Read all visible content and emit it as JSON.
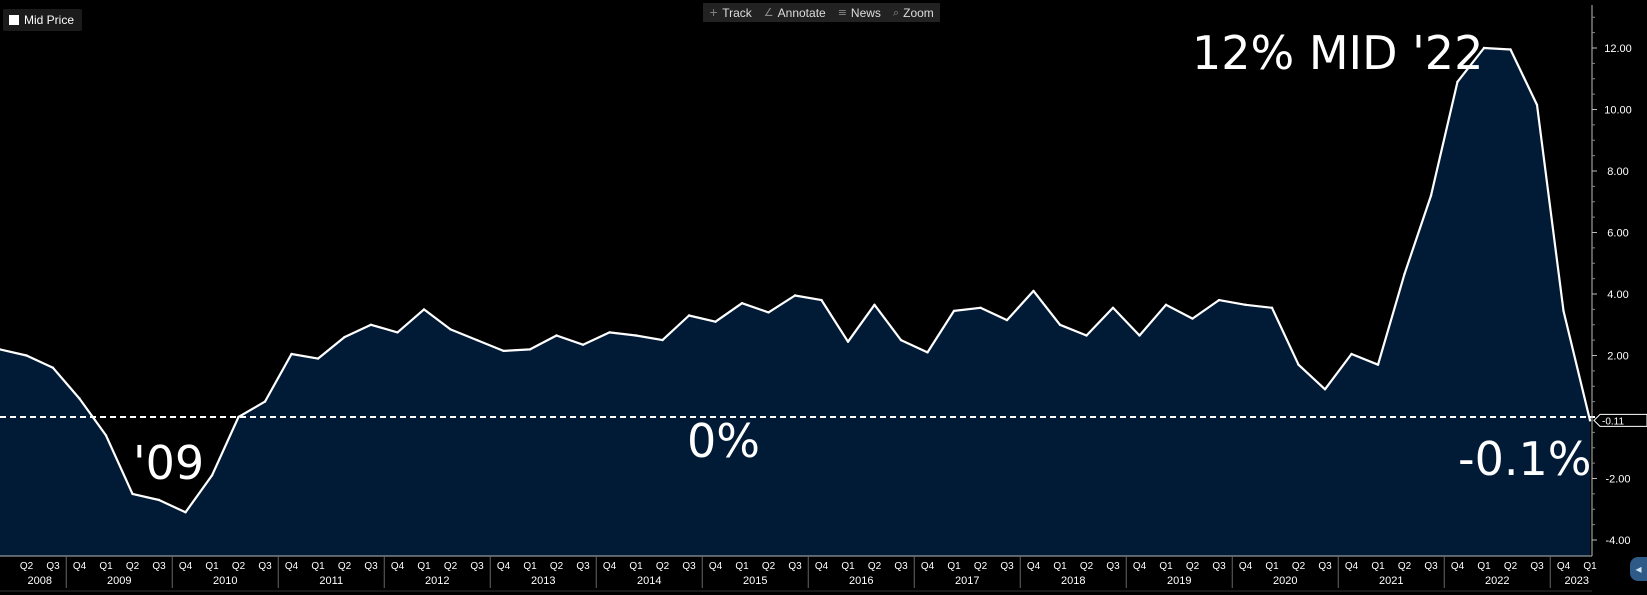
{
  "legend": {
    "label": "Mid Price",
    "swatch_color": "#ffffff"
  },
  "toolbar": {
    "items": [
      {
        "label": "Track",
        "icon": "crosshair-icon",
        "glyph": "+"
      },
      {
        "label": "Annotate",
        "icon": "pencil-icon",
        "glyph": "∠"
      },
      {
        "label": "News",
        "icon": "news-icon",
        "glyph": "≡"
      },
      {
        "label": "Zoom",
        "icon": "magnifier-icon",
        "glyph": "⌕"
      }
    ]
  },
  "annotations": {
    "peak": "12% MID '22",
    "trough": "'09",
    "zero": "0%",
    "latest": "-0.1%"
  },
  "current_value_label": "-0.11",
  "colors": {
    "background": "#000000",
    "area_fill": "#011a36",
    "line": "#ffffff",
    "zero_line": "#ffffff"
  },
  "chart_data": {
    "type": "area",
    "series": [
      {
        "values": [
          2.2,
          2.0,
          1.6,
          0.6,
          -0.6,
          -2.5,
          -2.7,
          -3.1,
          -1.9,
          0.0,
          0.5,
          2.05,
          1.9,
          2.6,
          3.0,
          2.75,
          3.5,
          2.85,
          2.5,
          2.15,
          2.2,
          2.65,
          2.35,
          2.75,
          2.65,
          2.5,
          3.3,
          3.1,
          3.7,
          3.4,
          3.95,
          3.8,
          2.45,
          3.65,
          2.5,
          2.1,
          3.45,
          3.55,
          3.15,
          4.1,
          3.0,
          2.65,
          3.55,
          2.65,
          3.65,
          3.2,
          3.8,
          3.65,
          3.55,
          1.7,
          0.9,
          2.05,
          1.7,
          4.65,
          7.2,
          10.9,
          12.0,
          11.95,
          10.15,
          3.45,
          -0.11
        ]
      }
    ],
    "x_quarters": [
      "Q1",
      "Q2",
      "Q3",
      "Q4",
      "Q1",
      "Q2",
      "Q3",
      "Q4",
      "Q1",
      "Q2",
      "Q3",
      "Q4",
      "Q1",
      "Q2",
      "Q3",
      "Q4",
      "Q1",
      "Q2",
      "Q3",
      "Q4",
      "Q1",
      "Q2",
      "Q3",
      "Q4",
      "Q1",
      "Q2",
      "Q3",
      "Q4",
      "Q1",
      "Q2",
      "Q3",
      "Q4",
      "Q1",
      "Q2",
      "Q3",
      "Q4",
      "Q1",
      "Q2",
      "Q3",
      "Q4",
      "Q1",
      "Q2",
      "Q3",
      "Q4",
      "Q1",
      "Q2",
      "Q3",
      "Q4",
      "Q1",
      "Q2",
      "Q3",
      "Q4",
      "Q1",
      "Q2",
      "Q3",
      "Q4",
      "Q1",
      "Q2",
      "Q3",
      "Q4",
      "Q1"
    ],
    "quarter_ticks": [
      "Q2",
      "Q3",
      "Q4",
      "Q1",
      "Q2",
      "Q3",
      "Q4",
      "Q1",
      "Q2",
      "Q3",
      "Q4",
      "Q1",
      "Q2",
      "Q3",
      "Q4",
      "Q1",
      "Q2",
      "Q3",
      "Q4",
      "Q1",
      "Q2",
      "Q3",
      "Q4",
      "Q1",
      "Q2",
      "Q3",
      "Q4",
      "Q1",
      "Q2",
      "Q3",
      "Q4",
      "Q1",
      "Q2",
      "Q3",
      "Q4",
      "Q1",
      "Q2",
      "Q3",
      "Q4",
      "Q1",
      "Q2",
      "Q3",
      "Q4",
      "Q1",
      "Q2",
      "Q3",
      "Q4",
      "Q1",
      "Q2",
      "Q3",
      "Q4",
      "Q1",
      "Q2",
      "Q3",
      "Q4",
      "Q1",
      "Q2",
      "Q3",
      "Q4",
      "Q1"
    ],
    "years": [
      "2008",
      "2009",
      "2010",
      "2011",
      "2012",
      "2013",
      "2014",
      "2015",
      "2016",
      "2017",
      "2018",
      "2019",
      "2020",
      "2021",
      "2022",
      "2023"
    ],
    "y_ticks": [
      12,
      10,
      8,
      6,
      4,
      2,
      -2,
      -4
    ],
    "y_tick_labels": [
      "12.00",
      "10.00",
      "8.00",
      "6.00",
      "4.00",
      "2.00",
      "-2.00",
      "-4.00"
    ],
    "ylim": [
      -4.2,
      13.0
    ],
    "reference_line": 0,
    "grid": false,
    "legend_position": "top-left"
  }
}
